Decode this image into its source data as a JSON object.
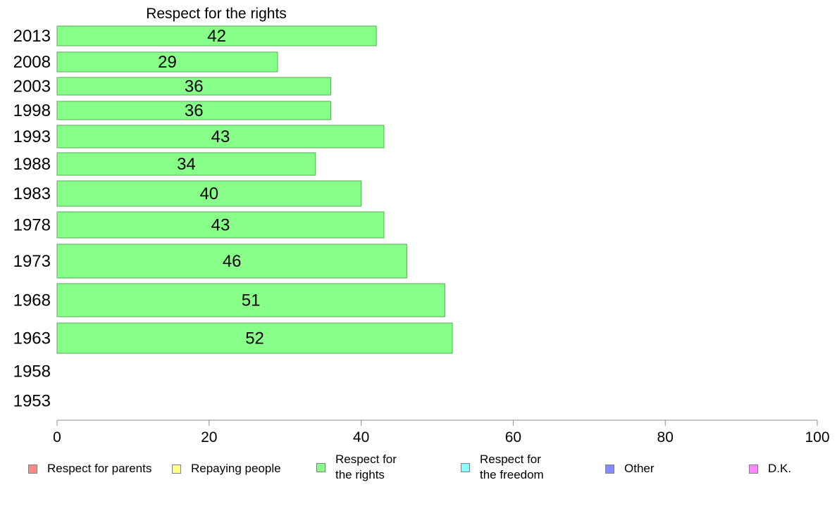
{
  "chart_data": {
    "type": "bar",
    "orientation": "horizontal",
    "title": "Respect for the rights",
    "categories": [
      "2013",
      "2008",
      "2003",
      "1998",
      "1993",
      "1988",
      "1983",
      "1978",
      "1973",
      "1968",
      "1963",
      "1958",
      "1953"
    ],
    "series": [
      {
        "name": "Respect for the rights",
        "values": [
          42,
          29,
          36,
          36,
          43,
          34,
          40,
          43,
          46,
          51,
          52,
          null,
          null
        ],
        "color": "#88ff88"
      }
    ],
    "xlim": [
      0,
      100
    ],
    "xticks": [
      0,
      20,
      40,
      60,
      80,
      100
    ],
    "legend_position": "bottom",
    "legend": [
      {
        "label": "Respect for parents",
        "color": "#ff8888"
      },
      {
        "label": "Repaying people",
        "color": "#ffff88"
      },
      {
        "label": "Respect for\nthe rights",
        "color": "#88ff88"
      },
      {
        "label": "Respect for\nthe freedom",
        "color": "#88ffff"
      },
      {
        "label": "Other",
        "color": "#8888ff"
      },
      {
        "label": "D.K.",
        "color": "#ff88ff"
      }
    ]
  }
}
